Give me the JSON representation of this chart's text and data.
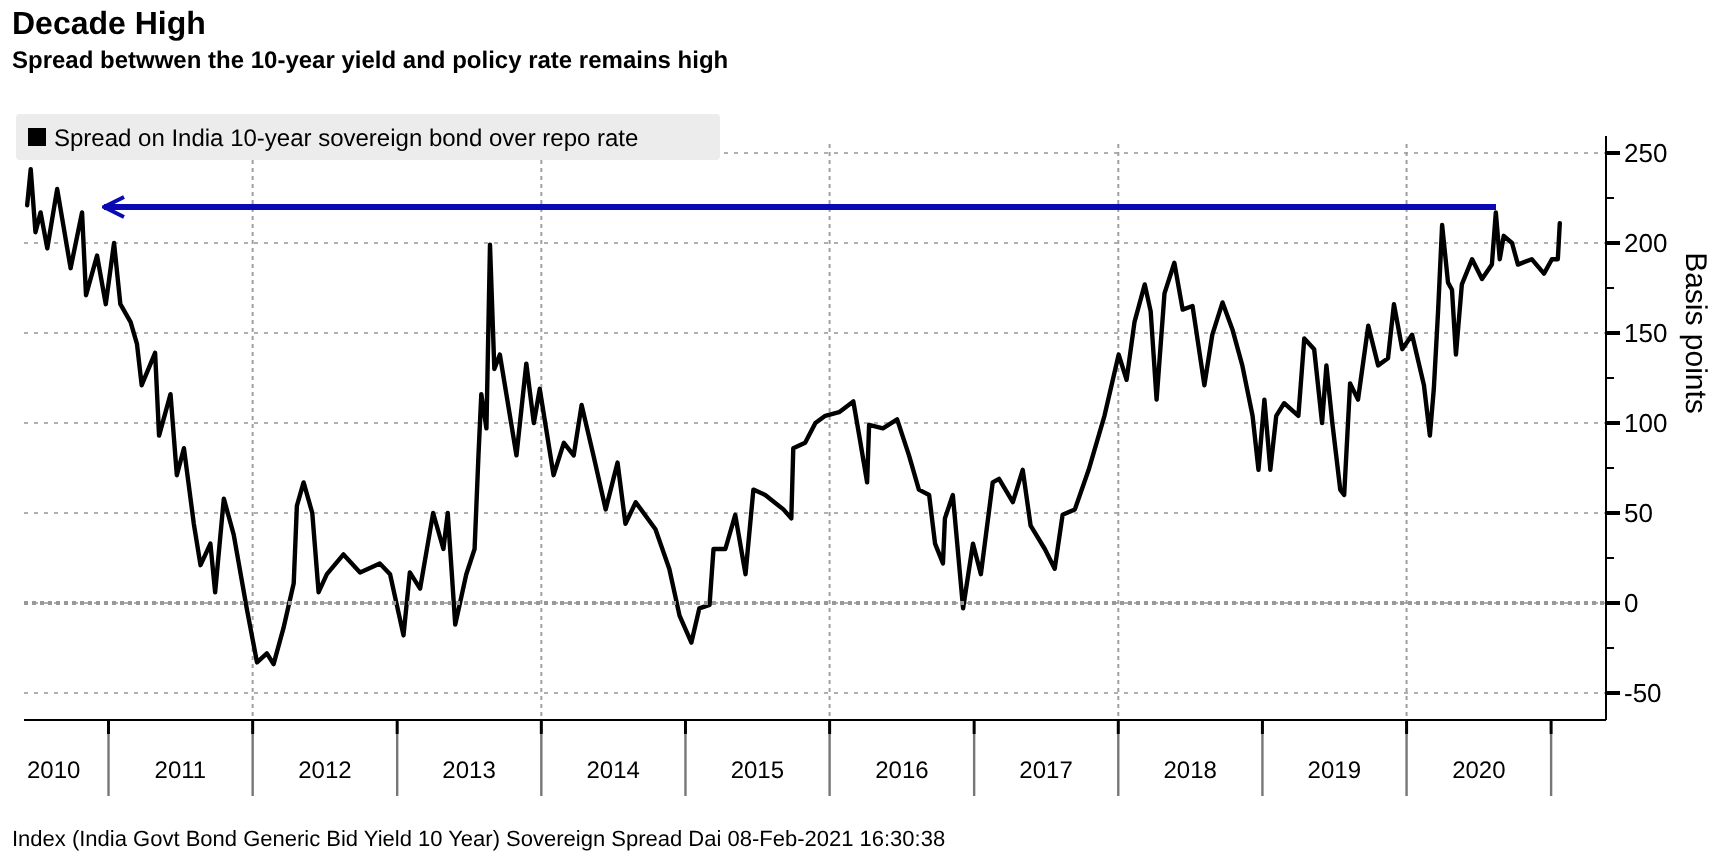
{
  "chart_data": {
    "type": "line",
    "title": "Decade High",
    "subtitle": "Spread betwwen the 10-year yield and policy rate remains high",
    "ylabel": "Basis points",
    "annotations": [
      "Index (India Govt Bond Generic Bid Yield 10 Year) Sovereign Spread Dai 08-Feb-2021 16:30:38"
    ],
    "xlim": [
      "2010-06-01",
      "2021-05-20"
    ],
    "xticks": [
      {
        "value": "2010-08-15",
        "label": "2010"
      },
      {
        "value": "2011-01-01",
        "label": null
      },
      {
        "value": "2011-07-02",
        "label": "2011"
      },
      {
        "value": "2012-01-01",
        "label": null
      },
      {
        "value": "2012-07-02",
        "label": "2012"
      },
      {
        "value": "2013-01-01",
        "label": null
      },
      {
        "value": "2013-07-02",
        "label": "2013"
      },
      {
        "value": "2014-01-01",
        "label": null
      },
      {
        "value": "2014-07-02",
        "label": "2014"
      },
      {
        "value": "2015-01-01",
        "label": null
      },
      {
        "value": "2015-07-02",
        "label": "2015"
      },
      {
        "value": "2016-01-01",
        "label": null
      },
      {
        "value": "2016-07-02",
        "label": "2016"
      },
      {
        "value": "2017-01-01",
        "label": null
      },
      {
        "value": "2017-07-02",
        "label": "2017"
      },
      {
        "value": "2018-01-01",
        "label": null
      },
      {
        "value": "2018-07-02",
        "label": "2018"
      },
      {
        "value": "2019-01-01",
        "label": null
      },
      {
        "value": "2019-07-02",
        "label": "2019"
      },
      {
        "value": "2020-01-01",
        "label": null
      },
      {
        "value": "2020-07-02",
        "label": "2020"
      },
      {
        "value": "2021-01-01",
        "label": null
      }
    ],
    "ylim": [
      -65,
      255
    ],
    "yticks": [
      -50,
      {
        "value": -25,
        "label": null
      },
      0,
      {
        "value": 25,
        "label": null
      },
      50,
      {
        "value": 75,
        "label": null
      },
      100,
      {
        "value": 125,
        "label": null
      },
      150,
      {
        "value": 175,
        "label": null
      },
      200,
      {
        "value": 225,
        "label": null
      },
      250
    ],
    "grid": "y",
    "legend": "top left",
    "line_style": "solid",
    "marker": "none",
    "ref_lines": [
      {
        "axis": "y",
        "value": 220,
        "color": "#0a0ab4",
        "line_style": "solid"
      },
      {
        "axis": "y",
        "value": 0,
        "color": "#999999",
        "line_style": "dotted"
      },
      {
        "axis": "x",
        "value": "2012-01-01",
        "color": "#a0a0a0",
        "line_style": "dotted"
      },
      {
        "axis": "x",
        "value": "2014-01-01",
        "color": "#a0a0a0",
        "line_style": "dotted"
      },
      {
        "axis": "x",
        "value": "2016-01-01",
        "color": "#a0a0a0",
        "line_style": "dotted"
      },
      {
        "axis": "x",
        "value": "2018-01-01",
        "color": "#a0a0a0",
        "line_style": "dotted"
      },
      {
        "axis": "x",
        "value": "2020-01-01",
        "color": "#a0a0a0",
        "line_style": "dotted"
      }
    ],
    "series": [
      {
        "name": "Spread on India 10-year sovereign bond over repo rate",
        "color": "#000000",
        "x": [
          "2010-06-09",
          "2010-06-18",
          "2010-06-30",
          "2010-07-13",
          "2010-07-30",
          "2010-08-24",
          "2010-09-27",
          "2010-10-26",
          "2010-11-05",
          "2010-12-03",
          "2010-12-25",
          "2011-01-15",
          "2011-01-31",
          "2011-02-26",
          "2011-03-14",
          "2011-03-26",
          "2011-04-29",
          "2011-05-09",
          "2011-06-07",
          "2011-06-23",
          "2011-07-11",
          "2011-08-05",
          "2011-08-22",
          "2011-09-16",
          "2011-09-28",
          "2011-10-20",
          "2011-11-14",
          "2011-12-17",
          "2012-01-12",
          "2012-02-06",
          "2012-02-23",
          "2012-03-19",
          "2012-04-14",
          "2012-04-22",
          "2012-05-09",
          "2012-05-31",
          "2012-06-16",
          "2012-07-07",
          "2012-08-18",
          "2012-09-29",
          "2012-11-18",
          "2012-12-14",
          "2013-01-17",
          "2013-02-02",
          "2013-02-28",
          "2013-04-02",
          "2013-04-28",
          "2013-05-09",
          "2013-05-28",
          "2013-06-25",
          "2013-07-16",
          "2013-07-26",
          "2013-08-02",
          "2013-08-15",
          "2013-08-24",
          "2013-09-04",
          "2013-09-18",
          "2013-10-30",
          "2013-11-24",
          "2013-12-13",
          "2013-12-28",
          "2014-02-01",
          "2014-02-27",
          "2014-03-24",
          "2014-04-13",
          "2014-05-13",
          "2014-06-13",
          "2014-07-13",
          "2014-08-02",
          "2014-08-28",
          "2014-10-17",
          "2014-11-21",
          "2014-12-17",
          "2015-01-16",
          "2015-02-05",
          "2015-03-03",
          "2015-03-13",
          "2015-04-12",
          "2015-05-07",
          "2015-06-02",
          "2015-06-22",
          "2015-07-22",
          "2015-09-06",
          "2015-09-26",
          "2015-10-01",
          "2015-10-31",
          "2015-11-26",
          "2015-12-21",
          "2016-01-25",
          "2016-03-01",
          "2016-03-16",
          "2016-04-05",
          "2016-04-10",
          "2016-05-15",
          "2016-06-20",
          "2016-07-20",
          "2016-08-14",
          "2016-09-09",
          "2016-09-24",
          "2016-10-14",
          "2016-10-19",
          "2016-11-08",
          "2016-12-04",
          "2016-12-29",
          "2017-01-18",
          "2017-02-17",
          "2017-03-05",
          "2017-04-09",
          "2017-05-04",
          "2017-05-24",
          "2017-06-29",
          "2017-07-24",
          "2017-08-13",
          "2017-09-13",
          "2017-10-18",
          "2017-11-27",
          "2018-01-02",
          "2018-01-22",
          "2018-02-11",
          "2018-03-09",
          "2018-03-24",
          "2018-04-08",
          "2018-04-28",
          "2018-05-23",
          "2018-06-13",
          "2018-07-08",
          "2018-08-07",
          "2018-08-27",
          "2018-09-22",
          "2018-10-17",
          "2018-11-11",
          "2018-12-07",
          "2018-12-22",
          "2019-01-06",
          "2019-01-21",
          "2019-02-05",
          "2019-02-25",
          "2019-04-02",
          "2019-04-17",
          "2019-05-12",
          "2019-06-01",
          "2019-06-12",
          "2019-06-27",
          "2019-07-17",
          "2019-07-27",
          "2019-08-11",
          "2019-08-31",
          "2019-09-26",
          "2019-10-21",
          "2019-11-15",
          "2019-11-30",
          "2019-12-21",
          "2020-01-15",
          "2020-02-14",
          "2020-02-29",
          "2020-03-10",
          "2020-03-21",
          "2020-03-31",
          "2020-04-15",
          "2020-04-25",
          "2020-05-05",
          "2020-05-20",
          "2020-06-15",
          "2020-07-10",
          "2020-08-04",
          "2020-08-14",
          "2020-08-24",
          "2020-09-03",
          "2020-09-24",
          "2020-10-09",
          "2020-11-13",
          "2020-12-14",
          "2021-01-03",
          "2021-01-18",
          "2021-01-23"
        ],
        "values": [
          221,
          241,
          206,
          217,
          197,
          230,
          186,
          217,
          171,
          193,
          166,
          200,
          166,
          156,
          144,
          121,
          139,
          93,
          116,
          71,
          86,
          44,
          21,
          33,
          6,
          58,
          38,
          -3,
          -33,
          -28,
          -34,
          -14,
          11,
          54,
          67,
          50,
          6,
          16,
          27,
          17,
          22,
          16,
          -18,
          17,
          8,
          50,
          30,
          50,
          -12,
          16,
          30,
          83,
          116,
          97,
          199,
          130,
          138,
          82,
          133,
          100,
          119,
          71,
          89,
          82,
          110,
          82,
          52,
          78,
          44,
          56,
          41,
          19,
          -7,
          -22,
          -3,
          -1,
          30,
          30,
          49,
          16,
          63,
          60,
          52,
          47,
          86,
          89,
          100,
          104,
          106,
          112,
          93,
          67,
          99,
          97,
          102,
          82,
          63,
          60,
          33,
          22,
          47,
          60,
          -3,
          33,
          16,
          67,
          69,
          56,
          74,
          43,
          30,
          19,
          49,
          52,
          74,
          104,
          138,
          124,
          156,
          177,
          162,
          113,
          172,
          189,
          163,
          165,
          121,
          149,
          167,
          152,
          132,
          104,
          74,
          113,
          74,
          104,
          111,
          104,
          147,
          141,
          100,
          132,
          100,
          63,
          60,
          122,
          113,
          154,
          132,
          136,
          166,
          141,
          149,
          121,
          93,
          119,
          163,
          210,
          178,
          174,
          138,
          177,
          191,
          180,
          188,
          217,
          191,
          204,
          200,
          188,
          191,
          183,
          191,
          191,
          211
        ]
      }
    ]
  }
}
